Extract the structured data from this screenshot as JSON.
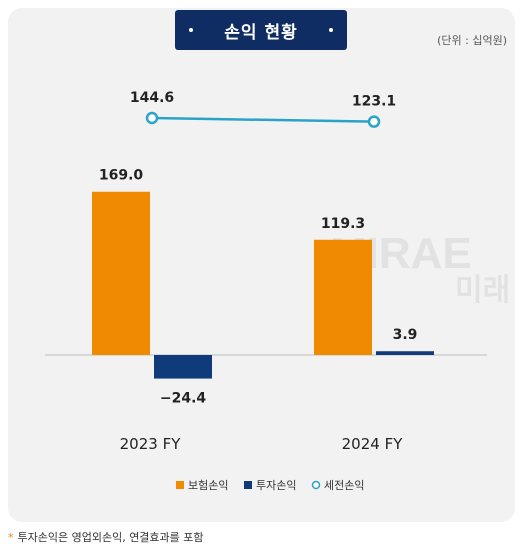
{
  "chart_data": {
    "type": "bar",
    "title": "손익 현황",
    "unit": "(단위 : 십억원)",
    "categories": [
      "2023 FY",
      "2024 FY"
    ],
    "series": [
      {
        "name": "보험손익",
        "kind": "bar",
        "color": "#f08a00",
        "values": [
          169.0,
          119.3
        ],
        "labels": [
          "169.0",
          "119.3"
        ]
      },
      {
        "name": "투자손익",
        "kind": "bar",
        "color": "#0f3b7a",
        "values": [
          -24.4,
          3.9
        ],
        "labels": [
          "−24.4",
          "3.9"
        ]
      },
      {
        "name": "세전손익",
        "kind": "line",
        "color": "#2aa3c9",
        "values": [
          144.6,
          123.1
        ],
        "labels": [
          "144.6",
          "123.1"
        ]
      }
    ],
    "legend_position": "bottom",
    "grid": false
  },
  "watermark": {
    "lines": [
      "MIRAE",
      "미래"
    ]
  },
  "footnote": {
    "star": "*",
    "text": "투자손익은 영업외손익, 연결효과를 포함"
  }
}
